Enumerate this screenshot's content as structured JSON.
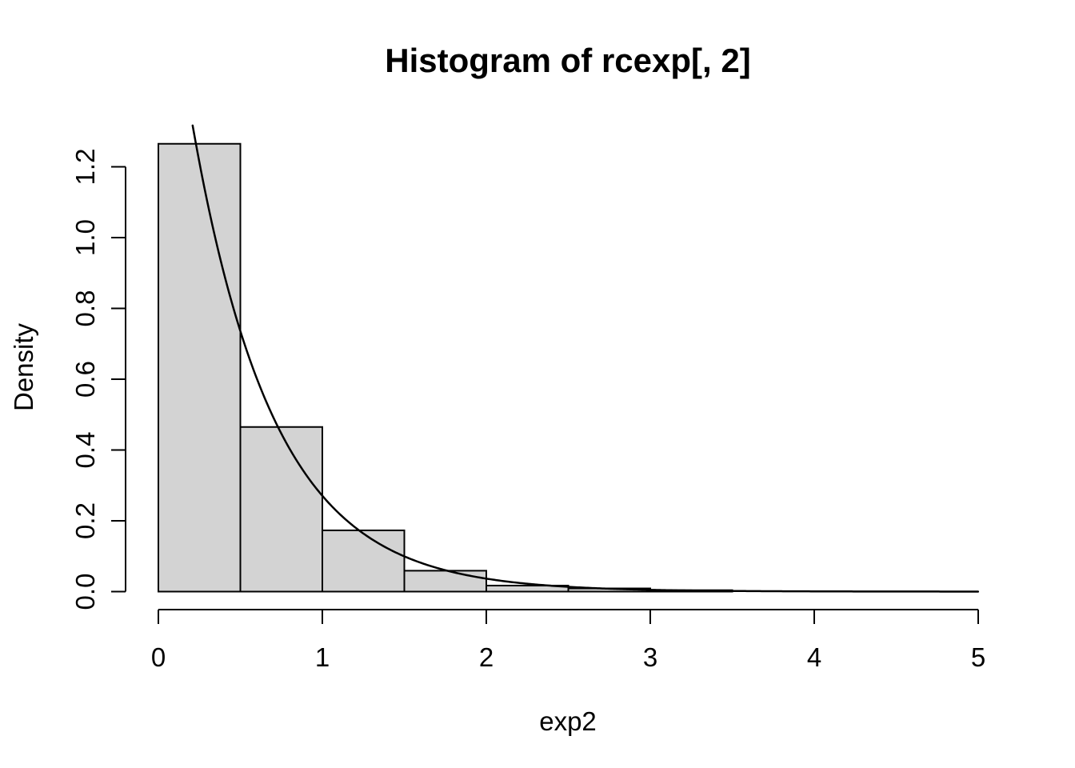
{
  "chart_data": {
    "type": "bar",
    "subtype": "histogram-with-density-curve",
    "title": "Histogram of rcexp[, 2]",
    "xlabel": "exp2",
    "ylabel": "Density",
    "x_ticks": [
      0,
      1,
      2,
      3,
      4,
      5
    ],
    "y_tick_labels": [
      "0.0",
      "0.2",
      "0.4",
      "0.6",
      "0.8",
      "1.0",
      "1.2"
    ],
    "xlim": [
      0,
      5
    ],
    "ylim": [
      0,
      1.2644
    ],
    "bin_width": 0.5,
    "bin_edges": [
      0,
      0.5,
      1.0,
      1.5,
      2.0,
      2.5,
      3.0,
      3.5
    ],
    "densities": [
      1.265,
      0.465,
      0.173,
      0.059,
      0.017,
      0.009,
      0.004
    ],
    "curve": {
      "name": "exponential-density-curve",
      "formula": "y = rate * exp(-rate * x)",
      "rate": 2,
      "x_from": 0.209,
      "x_to": 5
    },
    "grid": false,
    "legend": "none",
    "colors": {
      "bar_fill": "#D3D3D3",
      "bar_border": "#000000",
      "curve": "#000000",
      "axis": "#000000",
      "text": "#000000",
      "background": "#FFFFFF"
    }
  }
}
